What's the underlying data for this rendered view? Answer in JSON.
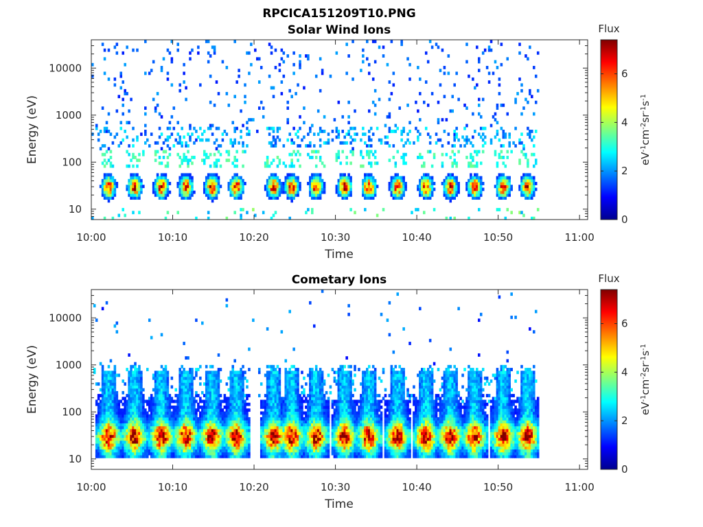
{
  "figure": {
    "title": "RPCICA151209T10.PNG"
  },
  "chart_data": [
    {
      "type": "heatmap",
      "title": "Solar Wind Ions",
      "xlabel": "Time",
      "ylabel": "Energy (eV)",
      "x_ticks": [
        "10:00",
        "10:10",
        "10:20",
        "10:30",
        "10:40",
        "10:50",
        "11:00"
      ],
      "y_ticks": [
        "10",
        "100",
        "1000",
        "10000"
      ],
      "y_scale": "log",
      "ylim": [
        6,
        40000
      ],
      "xlim_minutes": [
        0,
        61
      ],
      "data_end_minutes": 55,
      "colorbar": {
        "title": "Flux",
        "label": "eV-1cm-2sr-1s-1",
        "ticks": [
          "0",
          "2",
          "4",
          "6"
        ],
        "range": [
          0,
          7.4
        ],
        "colormap": "jet"
      },
      "pulse_centers_minutes": [
        2,
        5.2,
        8.5,
        11.5,
        14.7,
        17.7,
        22.3,
        24.5,
        27.5,
        31,
        34,
        37.5,
        41,
        44,
        47,
        50.5,
        53.5
      ],
      "pulse_peak_energy_eV": 30,
      "pulse_peak_flux": 6.8,
      "low_energy_plume_flux": 3.0,
      "background_high_energy_flux": 1.8
    },
    {
      "type": "heatmap",
      "title": "Cometary Ions",
      "xlabel": "Time",
      "ylabel": "Energy (eV)",
      "x_ticks": [
        "10:00",
        "10:10",
        "10:20",
        "10:30",
        "10:40",
        "10:50",
        "11:00"
      ],
      "y_ticks": [
        "10",
        "100",
        "1000",
        "10000"
      ],
      "y_scale": "log",
      "ylim": [
        6,
        40000
      ],
      "xlim_minutes": [
        0,
        61
      ],
      "data_end_minutes": 55,
      "colorbar": {
        "title": "Flux",
        "label": "eV-1cm-2sr-1s-1",
        "ticks": [
          "0",
          "2",
          "4",
          "6"
        ],
        "range": [
          0,
          7.4
        ],
        "colormap": "jet"
      },
      "pulse_centers_minutes": [
        2,
        5.2,
        8.5,
        11.5,
        14.7,
        17.7,
        22.3,
        24.5,
        27.5,
        31,
        34,
        37.5,
        41,
        44,
        47,
        50.5,
        53.5
      ],
      "pulse_peak_energy_eV": 30,
      "pulse_peak_flux": 7.2,
      "pulse_top_energy_eV": 700,
      "pulse_top_flux": 2.5
    }
  ]
}
